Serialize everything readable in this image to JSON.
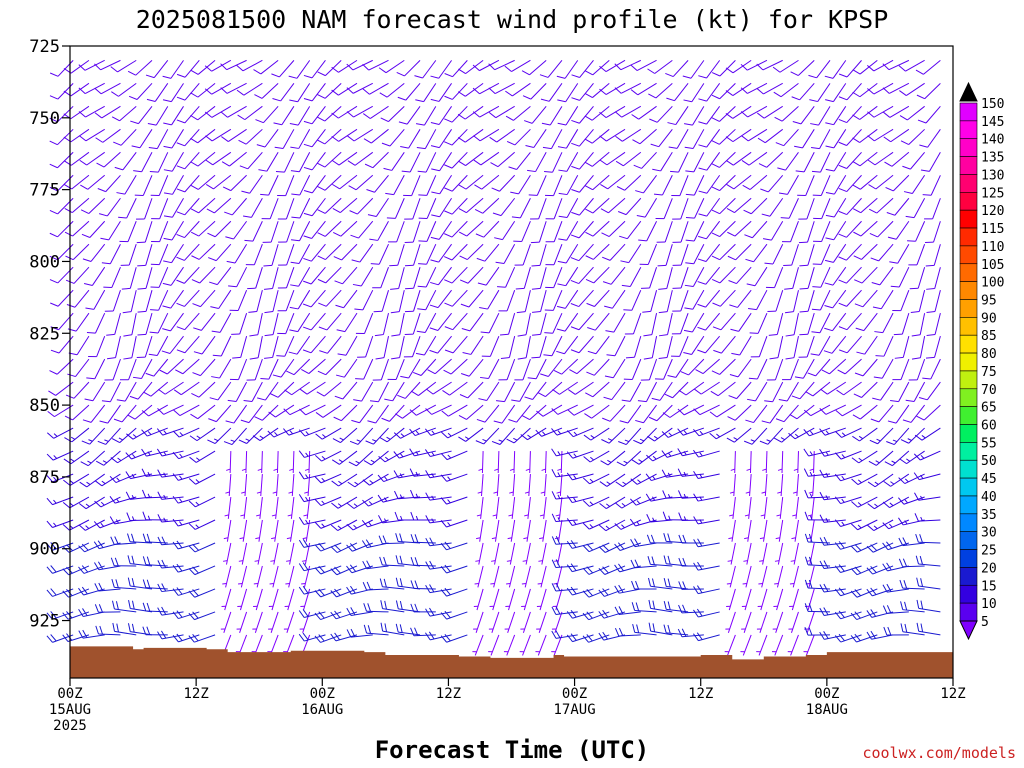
{
  "chart_data": {
    "type": "wind_barb_profile",
    "title": "2025081500 NAM forecast wind profile (kt) for KPSP",
    "xlabel": "Forecast Time (UTC)",
    "ylabel": "",
    "credit": "coolwx.com/models",
    "units": "kt",
    "x_hours_range": [
      0,
      84
    ],
    "y_pressure_range": [
      725,
      945
    ],
    "x_ticks": [
      {
        "hour": 0,
        "lines": [
          "00Z",
          "15AUG",
          "2025"
        ]
      },
      {
        "hour": 12,
        "lines": [
          "12Z"
        ]
      },
      {
        "hour": 24,
        "lines": [
          "00Z",
          "16AUG"
        ]
      },
      {
        "hour": 36,
        "lines": [
          "12Z"
        ]
      },
      {
        "hour": 48,
        "lines": [
          "00Z",
          "17AUG"
        ]
      },
      {
        "hour": 60,
        "lines": [
          "12Z"
        ]
      },
      {
        "hour": 72,
        "lines": [
          "00Z",
          "18AUG"
        ]
      },
      {
        "hour": 84,
        "lines": [
          "12Z"
        ]
      }
    ],
    "y_ticks": [
      725,
      750,
      775,
      800,
      825,
      850,
      875,
      900,
      925
    ],
    "colorbar": {
      "levels": [
        5,
        10,
        15,
        20,
        25,
        30,
        35,
        40,
        45,
        50,
        55,
        60,
        65,
        70,
        75,
        80,
        85,
        90,
        95,
        100,
        105,
        110,
        115,
        120,
        125,
        130,
        135,
        140,
        145,
        150
      ],
      "colors": [
        "#8000ff",
        "#5a00f0",
        "#3300e0",
        "#1a1ad0",
        "#0040e0",
        "#0066ee",
        "#0088ff",
        "#00a8ff",
        "#00c8f0",
        "#00e0d0",
        "#00f0a0",
        "#00f060",
        "#40f030",
        "#80f020",
        "#c0f010",
        "#f0f000",
        "#ffe000",
        "#ffc000",
        "#ffa000",
        "#ff8800",
        "#ff6a00",
        "#ff4a00",
        "#ff2a00",
        "#ff0000",
        "#ff0040",
        "#ff0070",
        "#ff00a0",
        "#ff00c8",
        "#ff00e8",
        "#e000ff"
      ],
      "over_color": "#000000",
      "under_color": "#8000ff"
    },
    "surface_pressure": [
      {
        "hour": 0,
        "p": 934
      },
      {
        "hour": 6,
        "p": 935
      },
      {
        "hour": 7,
        "p": 934.5
      },
      {
        "hour": 13,
        "p": 935
      },
      {
        "hour": 15,
        "p": 936
      },
      {
        "hour": 21,
        "p": 935.5
      },
      {
        "hour": 28,
        "p": 936
      },
      {
        "hour": 30,
        "p": 937
      },
      {
        "hour": 37,
        "p": 937.5
      },
      {
        "hour": 40,
        "p": 938
      },
      {
        "hour": 46,
        "p": 937
      },
      {
        "hour": 47,
        "p": 937.5
      },
      {
        "hour": 60,
        "p": 937
      },
      {
        "hour": 63,
        "p": 938.5
      },
      {
        "hour": 66,
        "p": 937.5
      },
      {
        "hour": 70,
        "p": 937
      },
      {
        "hour": 72,
        "p": 936
      },
      {
        "hour": 80,
        "p": 936
      },
      {
        "hour": 84,
        "p": 936
      }
    ],
    "wind_profile": [
      {
        "p": 730,
        "dir": 230,
        "speed_kt": 10
      },
      {
        "p": 750,
        "dir": 225,
        "speed_kt": 10
      },
      {
        "p": 775,
        "dir": 215,
        "speed_kt": 10
      },
      {
        "p": 800,
        "dir": 210,
        "speed_kt": 8
      },
      {
        "p": 825,
        "dir": 205,
        "speed_kt": 8
      },
      {
        "p": 850,
        "dir": 230,
        "speed_kt": 12
      },
      {
        "p": 875,
        "dir": 250,
        "speed_kt": 15
      },
      {
        "p": 900,
        "dir": 260,
        "speed_kt": 18
      },
      {
        "p": 925,
        "dir": 265,
        "speed_kt": 20
      }
    ]
  }
}
